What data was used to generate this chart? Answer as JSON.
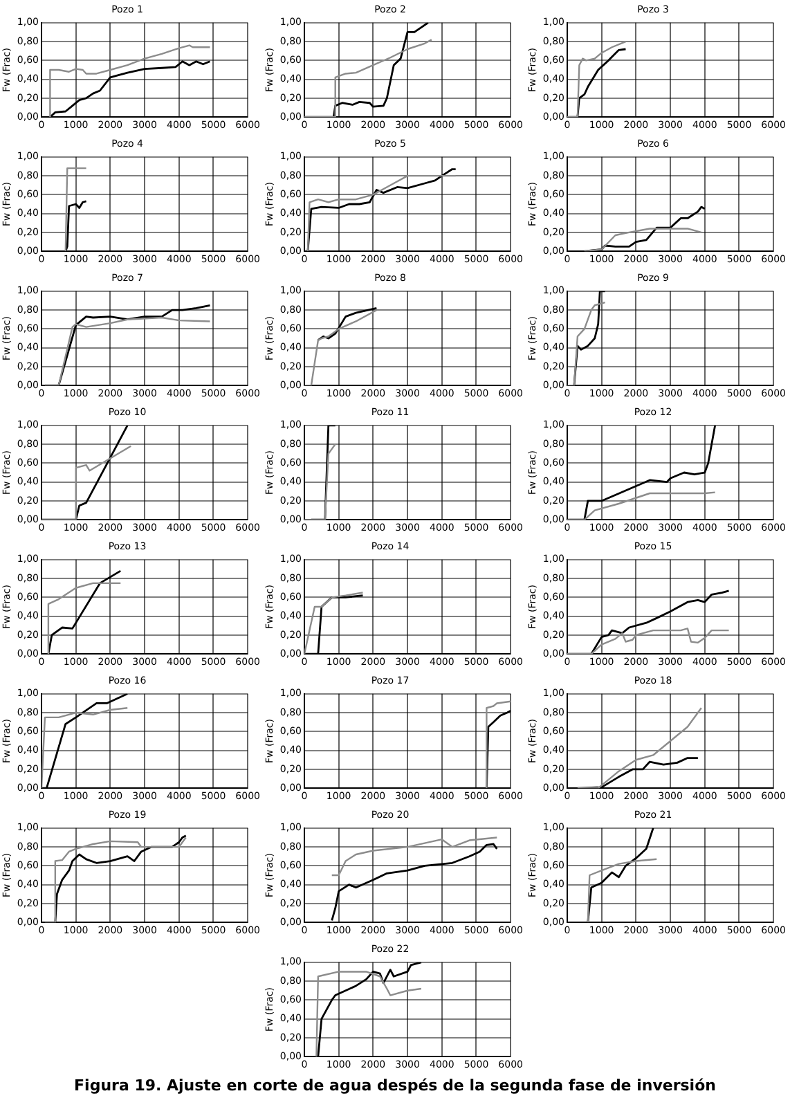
{
  "chart_data": [
    {
      "type": "line",
      "title": "Pozo 1",
      "ylabel": "Fw (Frac)",
      "xlim": [
        0,
        6000
      ],
      "xticks": [
        0,
        1000,
        2000,
        3000,
        4000,
        5000,
        6000
      ],
      "ylim": [
        0,
        1
      ],
      "yticks": [
        {
          "value": 0,
          "label": "0,00"
        },
        {
          "value": 0.2,
          "label": "0,20"
        },
        {
          "value": 0.4,
          "label": "0,40"
        },
        {
          "value": 0.6,
          "label": "0,60"
        },
        {
          "value": 0.8,
          "label": "0,80"
        },
        {
          "value": 1,
          "label": "1,00"
        }
      ],
      "grid": true,
      "series": [
        {
          "color": "#8c8c8c",
          "x": [
            250,
            250,
            500,
            800,
            1000,
            1200,
            1300,
            1600,
            2000,
            2500,
            3000,
            3500,
            4000,
            4300,
            4400,
            4900
          ],
          "values": [
            0,
            0.5,
            0.5,
            0.48,
            0.51,
            0.5,
            0.46,
            0.46,
            0.5,
            0.55,
            0.62,
            0.67,
            0.73,
            0.76,
            0.74,
            0.74
          ]
        },
        {
          "color": "#000000",
          "x": [
            250,
            400,
            700,
            900,
            1100,
            1300,
            1500,
            1700,
            2000,
            2200,
            2500,
            3000,
            3500,
            3900,
            4100,
            4300,
            4500,
            4700,
            4900
          ],
          "values": [
            0,
            0.05,
            0.06,
            0.12,
            0.18,
            0.2,
            0.25,
            0.28,
            0.42,
            0.44,
            0.47,
            0.51,
            0.52,
            0.53,
            0.59,
            0.55,
            0.59,
            0.56,
            0.59
          ]
        }
      ]
    },
    {
      "type": "line",
      "title": "Pozo 2",
      "ylabel": "Fw (Frac)",
      "xlim": [
        0,
        6000
      ],
      "xticks": [
        0,
        1000,
        2000,
        3000,
        4000,
        5000,
        6000
      ],
      "ylim": [
        0,
        1
      ],
      "yticks": [
        {
          "value": 0,
          "label": "0,00"
        },
        {
          "value": 0.2,
          "label": "0,20"
        },
        {
          "value": 0.4,
          "label": "0,40"
        },
        {
          "value": 0.6,
          "label": "0,60"
        },
        {
          "value": 0.8,
          "label": "0,80"
        },
        {
          "value": 1,
          "label": "1,00"
        }
      ],
      "grid": true,
      "series": [
        {
          "color": "#8c8c8c",
          "x": [
            0,
            900,
            900,
            1200,
            1500,
            2000,
            2500,
            3000,
            3500,
            3700
          ],
          "values": [
            0,
            0,
            0.42,
            0.46,
            0.47,
            0.55,
            0.63,
            0.72,
            0.78,
            0.82
          ]
        },
        {
          "color": "#000000",
          "x": [
            0,
            850,
            900,
            1100,
            1400,
            1600,
            1900,
            2000,
            2300,
            2400,
            2600,
            2800,
            3000,
            3200,
            3600
          ],
          "values": [
            0,
            0,
            0.12,
            0.15,
            0.13,
            0.16,
            0.15,
            0.11,
            0.12,
            0.2,
            0.55,
            0.62,
            0.9,
            0.9,
            1
          ]
        }
      ]
    },
    {
      "type": "line",
      "title": "Pozo 3",
      "ylabel": "Fw (Frac)",
      "xlim": [
        0,
        6000
      ],
      "xticks": [
        0,
        1000,
        2000,
        3000,
        4000,
        5000,
        6000
      ],
      "ylim": [
        0,
        1
      ],
      "yticks": [
        {
          "value": 0,
          "label": "0,00"
        },
        {
          "value": 0.2,
          "label": "0,20"
        },
        {
          "value": 0.4,
          "label": "0,40"
        },
        {
          "value": 0.6,
          "label": "0,60"
        },
        {
          "value": 0.8,
          "label": "0,80"
        },
        {
          "value": 1,
          "label": "1,00"
        }
      ],
      "grid": true,
      "series": [
        {
          "color": "#8c8c8c",
          "x": [
            0,
            300,
            350,
            450,
            550,
            800,
            1000,
            1300,
            1700
          ],
          "values": [
            0,
            0,
            0.55,
            0.62,
            0.6,
            0.62,
            0.68,
            0.74,
            0.8
          ]
        },
        {
          "color": "#000000",
          "x": [
            0,
            300,
            350,
            500,
            600,
            900,
            1200,
            1500,
            1700
          ],
          "values": [
            0,
            0,
            0.2,
            0.24,
            0.32,
            0.5,
            0.6,
            0.71,
            0.72
          ]
        }
      ]
    },
    {
      "type": "line",
      "title": "Pozo 4",
      "ylabel": "Fw (Frac)",
      "xlim": [
        0,
        6000
      ],
      "xticks": [
        0,
        1000,
        2000,
        3000,
        4000,
        5000,
        6000
      ],
      "ylim": [
        0,
        1
      ],
      "yticks": [
        {
          "value": 0,
          "label": "0,00"
        },
        {
          "value": 0.2,
          "label": "0,20"
        },
        {
          "value": 0.4,
          "label": "0,40"
        },
        {
          "value": 0.6,
          "label": "0,60"
        },
        {
          "value": 0.8,
          "label": "0,80"
        },
        {
          "value": 1,
          "label": "1,00"
        }
      ],
      "grid": true,
      "series": [
        {
          "color": "#8c8c8c",
          "x": [
            700,
            750,
            900,
            1300
          ],
          "values": [
            0,
            0.88,
            0.88,
            0.88
          ]
        },
        {
          "color": "#000000",
          "x": [
            700,
            750,
            800,
            1000,
            1100,
            1200,
            1300
          ],
          "values": [
            0,
            0.05,
            0.48,
            0.5,
            0.46,
            0.52,
            0.53
          ]
        }
      ]
    },
    {
      "type": "line",
      "title": "Pozo 5",
      "ylabel": "Fw (Frac)",
      "xlim": [
        0,
        6000
      ],
      "xticks": [
        0,
        1000,
        2000,
        3000,
        4000,
        5000,
        6000
      ],
      "ylim": [
        0,
        1
      ],
      "yticks": [
        {
          "value": 0,
          "label": "0,00"
        },
        {
          "value": 0.2,
          "label": "0,20"
        },
        {
          "value": 0.4,
          "label": "0,40"
        },
        {
          "value": 0.6,
          "label": "0,60"
        },
        {
          "value": 0.8,
          "label": "0,80"
        },
        {
          "value": 1,
          "label": "1,00"
        }
      ],
      "grid": true,
      "series": [
        {
          "color": "#8c8c8c",
          "x": [
            100,
            150,
            400,
            700,
            1000,
            1500,
            2000,
            2500,
            3000,
            3500,
            4000,
            4400
          ],
          "values": [
            0,
            0.52,
            0.55,
            0.52,
            0.55,
            0.55,
            0.6,
            0.7,
            0.8,
            0.8,
            0.8,
            0.8
          ]
        },
        {
          "color": "#000000",
          "x": [
            100,
            200,
            500,
            1000,
            1300,
            1600,
            1900,
            2100,
            2300,
            2700,
            3000,
            3500,
            3800,
            4000,
            4300,
            4400
          ],
          "values": [
            0,
            0.45,
            0.47,
            0.46,
            0.5,
            0.5,
            0.52,
            0.65,
            0.62,
            0.68,
            0.67,
            0.72,
            0.75,
            0.8,
            0.87,
            0.87
          ]
        }
      ]
    },
    {
      "type": "line",
      "title": "Pozo 6",
      "ylabel": "Fw (Frac)",
      "xlim": [
        0,
        6000
      ],
      "xticks": [
        0,
        1000,
        2000,
        3000,
        4000,
        5000,
        6000
      ],
      "ylim": [
        0,
        1
      ],
      "yticks": [
        {
          "value": 0,
          "label": "0,00"
        },
        {
          "value": 0.2,
          "label": "0,20"
        },
        {
          "value": 0.4,
          "label": "0,40"
        },
        {
          "value": 0.6,
          "label": "0,60"
        },
        {
          "value": 0.8,
          "label": "0,80"
        },
        {
          "value": 1,
          "label": "1,00"
        }
      ],
      "grid": true,
      "series": [
        {
          "color": "#8c8c8c",
          "x": [
            500,
            1000,
            1400,
            1800,
            2400,
            3000,
            3500,
            3900
          ],
          "values": [
            0,
            0.02,
            0.17,
            0.2,
            0.24,
            0.24,
            0.24,
            0.2
          ]
        },
        {
          "color": "#000000",
          "x": [
            500,
            1000,
            1100,
            1400,
            1800,
            2000,
            2300,
            2600,
            3000,
            3300,
            3500,
            3800,
            3900,
            4000
          ],
          "values": [
            0,
            0.02,
            0.06,
            0.05,
            0.05,
            0.1,
            0.12,
            0.25,
            0.25,
            0.35,
            0.35,
            0.42,
            0.47,
            0.45
          ]
        }
      ]
    },
    {
      "type": "line",
      "title": "Pozo 7",
      "ylabel": "Fw (Frac)",
      "xlim": [
        0,
        6000
      ],
      "xticks": [
        0,
        1000,
        2000,
        3000,
        4000,
        5000,
        6000
      ],
      "ylim": [
        0,
        1
      ],
      "yticks": [
        {
          "value": 0,
          "label": "0,00"
        },
        {
          "value": 0.2,
          "label": "0,20"
        },
        {
          "value": 0.4,
          "label": "0,40"
        },
        {
          "value": 0.6,
          "label": "0,60"
        },
        {
          "value": 0.8,
          "label": "0,80"
        },
        {
          "value": 1,
          "label": "1,00"
        }
      ],
      "grid": true,
      "series": [
        {
          "color": "#8c8c8c",
          "x": [
            100,
            500,
            900,
            1000,
            1300,
            2000,
            2500,
            3500,
            4000,
            4900
          ],
          "values": [
            0,
            0,
            0.62,
            0.65,
            0.62,
            0.66,
            0.7,
            0.72,
            0.69,
            0.68
          ]
        },
        {
          "color": "#000000",
          "x": [
            100,
            500,
            1000,
            1300,
            1500,
            2000,
            2500,
            3000,
            3500,
            3800,
            4100,
            4500,
            4900
          ],
          "values": [
            0,
            0,
            0.64,
            0.73,
            0.72,
            0.73,
            0.7,
            0.73,
            0.73,
            0.8,
            0.8,
            0.82,
            0.85
          ]
        }
      ]
    },
    {
      "type": "line",
      "title": "Pozo 8",
      "ylabel": "Fw (Frac)",
      "xlim": [
        0,
        6000
      ],
      "xticks": [
        0,
        1000,
        2000,
        3000,
        4000,
        5000,
        6000
      ],
      "ylim": [
        0,
        1
      ],
      "yticks": [
        {
          "value": 0,
          "label": "0,00"
        },
        {
          "value": 0.2,
          "label": "0,20"
        },
        {
          "value": 0.4,
          "label": "0,40"
        },
        {
          "value": 0.6,
          "label": "0,60"
        },
        {
          "value": 0.8,
          "label": "0,80"
        },
        {
          "value": 1,
          "label": "1,00"
        }
      ],
      "grid": true,
      "series": [
        {
          "color": "#8c8c8c",
          "x": [
            0,
            200,
            400,
            500,
            700,
            1000,
            1500,
            2100
          ],
          "values": [
            0,
            0,
            0.48,
            0.5,
            0.52,
            0.6,
            0.68,
            0.8
          ]
        },
        {
          "color": "#000000",
          "x": [
            400,
            550,
            700,
            900,
            1200,
            1500,
            2100
          ],
          "values": [
            0.48,
            0.52,
            0.5,
            0.55,
            0.73,
            0.77,
            0.82
          ]
        }
      ]
    },
    {
      "type": "line",
      "title": "Pozo 9",
      "ylabel": "Fw (Frac)",
      "xlim": [
        0,
        6000
      ],
      "xticks": [
        0,
        1000,
        2000,
        3000,
        4000,
        5000,
        6000
      ],
      "ylim": [
        0,
        1
      ],
      "yticks": [
        {
          "value": 0,
          "label": "0,00"
        },
        {
          "value": 0.2,
          "label": "0,20"
        },
        {
          "value": 0.4,
          "label": "0,40"
        },
        {
          "value": 0.6,
          "label": "0,60"
        },
        {
          "value": 0.8,
          "label": "0,80"
        },
        {
          "value": 1,
          "label": "1,00"
        }
      ],
      "grid": true,
      "series": [
        {
          "color": "#8c8c8c",
          "x": [
            0,
            200,
            300,
            500,
            700,
            800,
            1100
          ],
          "values": [
            0,
            0,
            0.52,
            0.6,
            0.8,
            0.85,
            0.88
          ]
        },
        {
          "color": "#000000",
          "x": [
            200,
            300,
            400,
            600,
            800,
            900,
            950,
            1100
          ],
          "values": [
            0,
            0.42,
            0.38,
            0.42,
            0.5,
            0.65,
            1,
            1
          ]
        }
      ]
    },
    {
      "type": "line",
      "title": "Pozo 10",
      "ylabel": "Fw (Frac)",
      "xlim": [
        0,
        6000
      ],
      "xticks": [
        0,
        1000,
        2000,
        3000,
        4000,
        5000,
        6000
      ],
      "ylim": [
        0,
        1
      ],
      "yticks": [
        {
          "value": 0,
          "label": "0,00"
        },
        {
          "value": 0.2,
          "label": "0,20"
        },
        {
          "value": 0.4,
          "label": "0,40"
        },
        {
          "value": 0.6,
          "label": "0,60"
        },
        {
          "value": 0.8,
          "label": "0,80"
        },
        {
          "value": 1,
          "label": "1,00"
        }
      ],
      "grid": true,
      "series": [
        {
          "color": "#8c8c8c",
          "x": [
            0,
            1000,
            1000,
            1300,
            1400,
            2000,
            2600
          ],
          "values": [
            0,
            0,
            0.55,
            0.58,
            0.52,
            0.65,
            0.78
          ]
        },
        {
          "color": "#000000",
          "x": [
            0,
            1000,
            1100,
            1300,
            2500
          ],
          "values": [
            0,
            0,
            0.15,
            0.18,
            1
          ]
        }
      ]
    },
    {
      "type": "line",
      "title": "Pozo 11",
      "ylabel": "Fw (Frac)",
      "xlim": [
        0,
        6000
      ],
      "xticks": [
        0,
        1000,
        2000,
        3000,
        4000,
        5000,
        6000
      ],
      "ylim": [
        0,
        1
      ],
      "yticks": [
        {
          "value": 0,
          "label": "0,00"
        },
        {
          "value": 0.2,
          "label": "0,20"
        },
        {
          "value": 0.4,
          "label": "0,40"
        },
        {
          "value": 0.6,
          "label": "0,60"
        },
        {
          "value": 0.8,
          "label": "0,80"
        },
        {
          "value": 1,
          "label": "1,00"
        }
      ],
      "grid": true,
      "series": [
        {
          "color": "#8c8c8c",
          "x": [
            0,
            600,
            700,
            800,
            900
          ],
          "values": [
            0,
            0,
            0.7,
            0.75,
            0.8
          ]
        },
        {
          "color": "#000000",
          "x": [
            200,
            600,
            650,
            700,
            900
          ],
          "values": [
            0,
            0,
            0.5,
            1,
            1
          ]
        }
      ]
    },
    {
      "type": "line",
      "title": "Pozo 12",
      "ylabel": "Fw (Frac)",
      "xlim": [
        0,
        6000
      ],
      "xticks": [
        0,
        1000,
        2000,
        3000,
        4000,
        5000,
        6000
      ],
      "ylim": [
        0,
        1
      ],
      "yticks": [
        {
          "value": 0,
          "label": "0,00"
        },
        {
          "value": 0.2,
          "label": "0,20"
        },
        {
          "value": 0.4,
          "label": "0,40"
        },
        {
          "value": 0.6,
          "label": "0,60"
        },
        {
          "value": 0.8,
          "label": "0,80"
        },
        {
          "value": 1,
          "label": "1,00"
        }
      ],
      "grid": true,
      "series": [
        {
          "color": "#8c8c8c",
          "x": [
            0,
            500,
            800,
            1500,
            2400,
            3000,
            4000,
            4300
          ],
          "values": [
            0,
            0,
            0.1,
            0.17,
            0.28,
            0.28,
            0.28,
            0.29
          ]
        },
        {
          "color": "#000000",
          "x": [
            0,
            500,
            600,
            1000,
            2400,
            2900,
            3000,
            3400,
            3700,
            4000,
            4100,
            4200,
            4300
          ],
          "values": [
            0,
            0,
            0.2,
            0.2,
            0.42,
            0.4,
            0.44,
            0.5,
            0.48,
            0.5,
            0.6,
            0.8,
            1
          ]
        }
      ]
    },
    {
      "type": "line",
      "title": "Pozo 13",
      "ylabel": "Fw (Frac)",
      "xlim": [
        0,
        6000
      ],
      "xticks": [
        0,
        1000,
        2000,
        3000,
        4000,
        5000,
        6000
      ],
      "ylim": [
        0,
        1
      ],
      "yticks": [
        {
          "value": 0,
          "label": "0,00"
        },
        {
          "value": 0.2,
          "label": "0,20"
        },
        {
          "value": 0.4,
          "label": "0,40"
        },
        {
          "value": 0.6,
          "label": "0,60"
        },
        {
          "value": 0.8,
          "label": "0,80"
        },
        {
          "value": 1,
          "label": "1,00"
        }
      ],
      "grid": true,
      "series": [
        {
          "color": "#8c8c8c",
          "x": [
            200,
            200,
            500,
            1000,
            1500,
            2300
          ],
          "values": [
            0,
            0.53,
            0.58,
            0.7,
            0.75,
            0.75
          ]
        },
        {
          "color": "#000000",
          "x": [
            200,
            300,
            600,
            900,
            1700,
            2300
          ],
          "values": [
            0,
            0.2,
            0.28,
            0.27,
            0.75,
            0.88
          ]
        }
      ]
    },
    {
      "type": "line",
      "title": "Pozo 14",
      "ylabel": "Fw (Frac)",
      "xlim": [
        0,
        6000
      ],
      "xticks": [
        0,
        1000,
        2000,
        3000,
        4000,
        5000,
        6000
      ],
      "ylim": [
        0,
        1
      ],
      "yticks": [
        {
          "value": 0,
          "label": "0,00"
        },
        {
          "value": 0.2,
          "label": "0,20"
        },
        {
          "value": 0.4,
          "label": "0,40"
        },
        {
          "value": 0.6,
          "label": "0,60"
        },
        {
          "value": 0.8,
          "label": "0,80"
        },
        {
          "value": 1,
          "label": "1,00"
        }
      ],
      "grid": true,
      "series": [
        {
          "color": "#8c8c8c",
          "x": [
            0,
            300,
            500,
            800,
            1200,
            1700
          ],
          "values": [
            0,
            0.5,
            0.5,
            0.6,
            0.62,
            0.65
          ]
        },
        {
          "color": "#000000",
          "x": [
            0,
            400,
            500,
            800,
            1200,
            1700
          ],
          "values": [
            0,
            0,
            0.5,
            0.6,
            0.6,
            0.62
          ]
        }
      ]
    },
    {
      "type": "line",
      "title": "Pozo 15",
      "ylabel": "Fw (Frac)",
      "xlim": [
        0,
        6000
      ],
      "xticks": [
        0,
        1000,
        2000,
        3000,
        4000,
        5000,
        6000
      ],
      "ylim": [
        0,
        1
      ],
      "yticks": [
        {
          "value": 0,
          "label": "0,00"
        },
        {
          "value": 0.2,
          "label": "0,20"
        },
        {
          "value": 0.4,
          "label": "0,40"
        },
        {
          "value": 0.6,
          "label": "0,60"
        },
        {
          "value": 0.8,
          "label": "0,80"
        },
        {
          "value": 1,
          "label": "1,00"
        }
      ],
      "grid": true,
      "series": [
        {
          "color": "#8c8c8c",
          "x": [
            0,
            700,
            1000,
            1400,
            1600,
            1700,
            1900,
            2000,
            2500,
            3300,
            3500,
            3600,
            3800,
            4000,
            4200,
            4700
          ],
          "values": [
            0,
            0,
            0.1,
            0.16,
            0.22,
            0.13,
            0.15,
            0.2,
            0.25,
            0.25,
            0.27,
            0.13,
            0.12,
            0.17,
            0.25,
            0.25
          ]
        },
        {
          "color": "#000000",
          "x": [
            0,
            700,
            1000,
            1200,
            1300,
            1600,
            1800,
            2300,
            2600,
            3000,
            3500,
            3800,
            4000,
            4200,
            4500,
            4700
          ],
          "values": [
            0,
            0,
            0.18,
            0.2,
            0.25,
            0.22,
            0.28,
            0.33,
            0.38,
            0.45,
            0.55,
            0.57,
            0.55,
            0.63,
            0.65,
            0.67
          ]
        }
      ]
    },
    {
      "type": "line",
      "title": "Pozo 16",
      "ylabel": "Fw (Frac)",
      "xlim": [
        0,
        6000
      ],
      "xticks": [
        0,
        1000,
        2000,
        3000,
        4000,
        5000,
        6000
      ],
      "ylim": [
        0,
        1
      ],
      "yticks": [
        {
          "value": 0,
          "label": "0,00"
        },
        {
          "value": 0.2,
          "label": "0,20"
        },
        {
          "value": 0.4,
          "label": "0,40"
        },
        {
          "value": 0.6,
          "label": "0,60"
        },
        {
          "value": 0.8,
          "label": "0,80"
        },
        {
          "value": 1,
          "label": "1,00"
        }
      ],
      "grid": true,
      "series": [
        {
          "color": "#8c8c8c",
          "x": [
            0,
            100,
            500,
            1000,
            1500,
            2000,
            2500
          ],
          "values": [
            0,
            0.75,
            0.75,
            0.8,
            0.78,
            0.83,
            0.85
          ]
        },
        {
          "color": "#000000",
          "x": [
            0,
            150,
            700,
            1000,
            1600,
            1900,
            2500
          ],
          "values": [
            0,
            0,
            0.68,
            0.75,
            0.9,
            0.9,
            1
          ]
        }
      ]
    },
    {
      "type": "line",
      "title": "Pozo 17",
      "ylabel": "Fw (Frac)",
      "xlim": [
        0,
        6000
      ],
      "xticks": [
        0,
        1000,
        2000,
        3000,
        4000,
        5000,
        6000
      ],
      "ylim": [
        0,
        1
      ],
      "yticks": [
        {
          "value": 0,
          "label": "0,00"
        },
        {
          "value": 0.2,
          "label": "0,20"
        },
        {
          "value": 0.4,
          "label": "0,40"
        },
        {
          "value": 0.6,
          "label": "0,60"
        },
        {
          "value": 0.8,
          "label": "0,80"
        },
        {
          "value": 1,
          "label": "1,00"
        }
      ],
      "grid": true,
      "series": [
        {
          "color": "#8c8c8c",
          "x": [
            5300,
            5300,
            5500,
            5600,
            6000
          ],
          "values": [
            0,
            0.85,
            0.87,
            0.9,
            0.92
          ]
        },
        {
          "color": "#000000",
          "x": [
            5300,
            5350,
            5500,
            5700,
            5900,
            6000
          ],
          "values": [
            0,
            0.65,
            0.7,
            0.77,
            0.8,
            0.82
          ]
        }
      ]
    },
    {
      "type": "line",
      "title": "Pozo 18",
      "ylabel": "Fw (Frac)",
      "xlim": [
        0,
        6000
      ],
      "xticks": [
        0,
        1000,
        2000,
        3000,
        4000,
        5000,
        6000
      ],
      "ylim": [
        0,
        1
      ],
      "yticks": [
        {
          "value": 0,
          "label": "0,00"
        },
        {
          "value": 0.2,
          "label": "0,20"
        },
        {
          "value": 0.4,
          "label": "0,40"
        },
        {
          "value": 0.6,
          "label": "0,60"
        },
        {
          "value": 0.8,
          "label": "0,80"
        },
        {
          "value": 1,
          "label": "1,00"
        }
      ],
      "grid": true,
      "series": [
        {
          "color": "#8c8c8c",
          "x": [
            300,
            900,
            1000,
            1500,
            2000,
            2500,
            3000,
            3500,
            3900
          ],
          "values": [
            0,
            0,
            0.03,
            0.18,
            0.3,
            0.35,
            0.5,
            0.65,
            0.85
          ]
        },
        {
          "color": "#000000",
          "x": [
            300,
            1000,
            1500,
            1900,
            2200,
            2400,
            2800,
            3200,
            3500,
            3800
          ],
          "values": [
            0,
            0.01,
            0.12,
            0.2,
            0.2,
            0.28,
            0.25,
            0.27,
            0.32,
            0.32
          ]
        }
      ]
    },
    {
      "type": "line",
      "title": "Pozo 19",
      "ylabel": "Fw (Frac)",
      "xlim": [
        0,
        6000
      ],
      "xticks": [
        0,
        1000,
        2000,
        3000,
        4000,
        5000,
        6000
      ],
      "ylim": [
        0,
        1
      ],
      "yticks": [
        {
          "value": 0,
          "label": "0,00"
        },
        {
          "value": 0.2,
          "label": "0,20"
        },
        {
          "value": 0.4,
          "label": "0,40"
        },
        {
          "value": 0.6,
          "label": "0,60"
        },
        {
          "value": 0.8,
          "label": "0,80"
        },
        {
          "value": 1,
          "label": "1,00"
        }
      ],
      "grid": true,
      "series": [
        {
          "color": "#8c8c8c",
          "x": [
            100,
            400,
            400,
            600,
            800,
            1000,
            1500,
            2000,
            2800,
            2900,
            3500,
            4000,
            4200
          ],
          "values": [
            0,
            0,
            0.65,
            0.66,
            0.75,
            0.78,
            0.83,
            0.86,
            0.85,
            0.8,
            0.8,
            0.8,
            0.9
          ]
        },
        {
          "color": "#000000",
          "x": [
            100,
            400,
            450,
            600,
            800,
            900,
            1100,
            1300,
            1600,
            2000,
            2500,
            2700,
            2900,
            3200,
            3800,
            4000,
            4100,
            4200
          ],
          "values": [
            0,
            0,
            0.3,
            0.45,
            0.55,
            0.65,
            0.72,
            0.67,
            0.63,
            0.65,
            0.7,
            0.65,
            0.75,
            0.8,
            0.8,
            0.85,
            0.9,
            0.92
          ]
        }
      ]
    },
    {
      "type": "line",
      "title": "Pozo 20",
      "ylabel": "Fw (Frac)",
      "xlim": [
        0,
        6000
      ],
      "xticks": [
        0,
        1000,
        2000,
        3000,
        4000,
        5000,
        6000
      ],
      "ylim": [
        0,
        1
      ],
      "yticks": [
        {
          "value": 0,
          "label": "0,00"
        },
        {
          "value": 0.2,
          "label": "0,20"
        },
        {
          "value": 0.4,
          "label": "0,40"
        },
        {
          "value": 0.6,
          "label": "0,60"
        },
        {
          "value": 0.8,
          "label": "0,80"
        },
        {
          "value": 1,
          "label": "1,00"
        }
      ],
      "grid": true,
      "series": [
        {
          "color": "#8c8c8c",
          "x": [
            800,
            1000,
            1200,
            1500,
            2000,
            3000,
            4000,
            4300,
            4800,
            5600
          ],
          "values": [
            0.5,
            0.5,
            0.65,
            0.72,
            0.76,
            0.8,
            0.88,
            0.8,
            0.87,
            0.9
          ]
        },
        {
          "color": "#000000",
          "x": [
            800,
            900,
            1000,
            1300,
            1500,
            2000,
            2400,
            3000,
            3500,
            4300,
            4800,
            5100,
            5300,
            5500,
            5600
          ],
          "values": [
            0.02,
            0.15,
            0.33,
            0.4,
            0.37,
            0.45,
            0.52,
            0.55,
            0.6,
            0.63,
            0.7,
            0.75,
            0.82,
            0.83,
            0.78
          ]
        }
      ]
    },
    {
      "type": "line",
      "title": "Pozo 21",
      "ylabel": "Fw (Frac)",
      "xlim": [
        0,
        6000
      ],
      "xticks": [
        0,
        1000,
        2000,
        3000,
        4000,
        5000,
        6000
      ],
      "ylim": [
        0,
        1
      ],
      "yticks": [
        {
          "value": 0,
          "label": "0,00"
        },
        {
          "value": 0.2,
          "label": "0,20"
        },
        {
          "value": 0.4,
          "label": "0,40"
        },
        {
          "value": 0.6,
          "label": "0,60"
        },
        {
          "value": 0.8,
          "label": "0,80"
        },
        {
          "value": 1,
          "label": "1,00"
        }
      ],
      "grid": true,
      "series": [
        {
          "color": "#8c8c8c",
          "x": [
            600,
            650,
            1000,
            1500,
            2000,
            2600
          ],
          "values": [
            0,
            0.5,
            0.55,
            0.62,
            0.65,
            0.67
          ]
        },
        {
          "color": "#000000",
          "x": [
            600,
            700,
            1000,
            1300,
            1500,
            1700,
            2000,
            2300,
            2500
          ],
          "values": [
            0,
            0.37,
            0.42,
            0.53,
            0.48,
            0.6,
            0.68,
            0.78,
            1
          ]
        }
      ]
    },
    {
      "type": "line",
      "title": "Pozo 22",
      "ylabel": "Fw (Frac)",
      "xlim": [
        0,
        6000
      ],
      "xticks": [
        0,
        1000,
        2000,
        3000,
        4000,
        5000,
        6000
      ],
      "ylim": [
        0,
        1
      ],
      "yticks": [
        {
          "value": 0,
          "label": "0,00"
        },
        {
          "value": 0.2,
          "label": "0,20"
        },
        {
          "value": 0.4,
          "label": "0,40"
        },
        {
          "value": 0.6,
          "label": "0,60"
        },
        {
          "value": 0.8,
          "label": "0,80"
        },
        {
          "value": 1,
          "label": "1,00"
        }
      ],
      "grid": true,
      "annotations": [
        "Figura 19. Ajuste en corte de agua despés de la segunda fase de inversión"
      ],
      "series": [
        {
          "color": "#8c8c8c",
          "x": [
            350,
            400,
            1000,
            1800,
            2200,
            2400,
            2500,
            3000,
            3400
          ],
          "values": [
            0,
            0.85,
            0.9,
            0.9,
            0.85,
            0.72,
            0.65,
            0.7,
            0.72
          ]
        },
        {
          "color": "#000000",
          "x": [
            350,
            400,
            500,
            800,
            900,
            1500,
            1800,
            2000,
            2200,
            2300,
            2500,
            2600,
            3000,
            3100,
            3400
          ],
          "values": [
            0,
            0,
            0.4,
            0.6,
            0.65,
            0.75,
            0.82,
            0.9,
            0.88,
            0.78,
            0.92,
            0.85,
            0.9,
            0.97,
            1
          ]
        }
      ]
    }
  ]
}
